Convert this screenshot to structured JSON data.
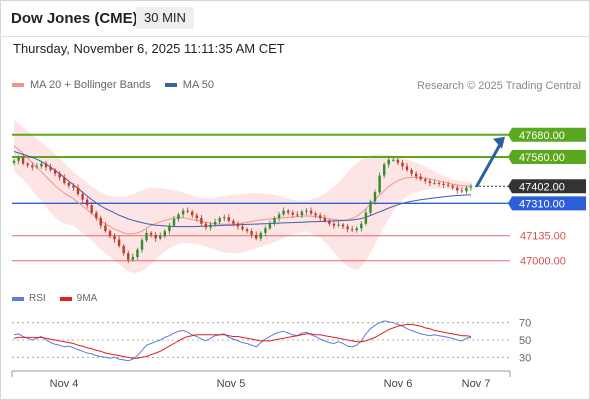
{
  "header": {
    "title": "Dow Jones (CME)",
    "timeframe": "30 MIN",
    "date": "Thursday, November 6, 2025 11:11:35 AM CET",
    "credit": "Research © 2025 Trading Central"
  },
  "legend": {
    "items": [
      {
        "label": "MA 20 + Bollinger Bands",
        "color": "#f0938f"
      },
      {
        "label": "MA 50",
        "color": "#3b5fa8"
      }
    ]
  },
  "rsi_legend": {
    "items": [
      {
        "label": "RSI",
        "color": "#5b7fd6"
      },
      {
        "label": "9MA",
        "color": "#e02020"
      }
    ]
  },
  "colors": {
    "up_candle": "#2e8b2e",
    "down_candle": "#c0392b",
    "resistance": "#5aa81e",
    "pivot": "#2a5fd8",
    "support": "#e26a6a",
    "current": "#333333",
    "bollinger_fill": "#fde0e0",
    "ma20": "#f0938f",
    "ma50": "#3b5fa8",
    "arrow": "#2a5fa8"
  },
  "chart_data": [
    {
      "type": "candlestick",
      "title": "",
      "y_range": [
        46885,
        47760
      ],
      "x_labels": [
        "Nov 4",
        "Nov 5",
        "Nov 6",
        "Nov 7"
      ],
      "levels": [
        {
          "value": 47680.0,
          "label": "47680.00",
          "kind": "resistance"
        },
        {
          "value": 47560.0,
          "label": "47560.00",
          "kind": "resistance"
        },
        {
          "value": 47402.0,
          "label": "47402.00",
          "kind": "current"
        },
        {
          "value": 47310.0,
          "label": "47310.00",
          "kind": "pivot"
        },
        {
          "value": 47135.0,
          "label": "47135.00",
          "kind": "support"
        },
        {
          "value": 47000.0,
          "label": "47000.00",
          "kind": "support"
        }
      ],
      "forecast_arrow": {
        "from": 47405,
        "to": 47680
      },
      "close": [
        47540,
        47555,
        47525,
        47515,
        47505,
        47510,
        47525,
        47505,
        47490,
        47470,
        47450,
        47420,
        47405,
        47395,
        47360,
        47330,
        47300,
        47260,
        47230,
        47190,
        47160,
        47135,
        47115,
        47080,
        47040,
        47005,
        47020,
        47060,
        47110,
        47150,
        47140,
        47120,
        47135,
        47160,
        47190,
        47225,
        47250,
        47270,
        47265,
        47245,
        47230,
        47200,
        47180,
        47195,
        47210,
        47230,
        47235,
        47215,
        47200,
        47185,
        47170,
        47160,
        47140,
        47120,
        47150,
        47175,
        47200,
        47230,
        47250,
        47270,
        47260,
        47250,
        47245,
        47265,
        47270,
        47255,
        47245,
        47230,
        47215,
        47200,
        47190,
        47195,
        47185,
        47170,
        47165,
        47175,
        47200,
        47260,
        47320,
        47370,
        47460,
        47520,
        47545,
        47545,
        47530,
        47510,
        47490,
        47470,
        47455,
        47440,
        47430,
        47420,
        47420,
        47415,
        47410,
        47405,
        47395,
        47380,
        47375,
        47395,
        47402
      ],
      "ma20": [
        47620,
        47600,
        47580,
        47555,
        47530,
        47505,
        47480,
        47455,
        47430,
        47405,
        47385,
        47365,
        47350,
        47335,
        47315,
        47295,
        47275,
        47255,
        47235,
        47215,
        47200,
        47185,
        47170,
        47160,
        47150,
        47145,
        47145,
        47150,
        47160,
        47175,
        47190,
        47200,
        47210,
        47218,
        47225,
        47230,
        47232,
        47232,
        47228,
        47222,
        47218,
        47212,
        47207,
        47203,
        47200,
        47198,
        47197,
        47197,
        47198,
        47200,
        47203,
        47207,
        47212,
        47217,
        47220,
        47223,
        47226,
        47228,
        47230,
        47232,
        47234,
        47236,
        47238,
        47240,
        47242,
        47240,
        47238,
        47235,
        47231,
        47227,
        47223,
        47220,
        47218,
        47220,
        47228,
        47240,
        47258,
        47280,
        47305,
        47330,
        47355,
        47378,
        47400,
        47418,
        47432,
        47442,
        47448,
        47450,
        47450,
        47448,
        47445,
        47441,
        47436,
        47430,
        47424,
        47418,
        47413,
        47409,
        47406,
        47404,
        47403
      ],
      "bb_upper": [
        47760,
        47740,
        47720,
        47700,
        47680,
        47660,
        47640,
        47620,
        47600,
        47575,
        47555,
        47530,
        47505,
        47480,
        47460,
        47440,
        47420,
        47400,
        47385,
        47370,
        47358,
        47350,
        47345,
        47345,
        47345,
        47350,
        47360,
        47370,
        47380,
        47390,
        47395,
        47395,
        47392,
        47388,
        47384,
        47380,
        47375,
        47368,
        47360,
        47352,
        47345,
        47340,
        47338,
        47338,
        47340,
        47344,
        47348,
        47352,
        47356,
        47360,
        47362,
        47364,
        47365,
        47365,
        47364,
        47362,
        47360,
        47356,
        47350,
        47343,
        47336,
        47330,
        47326,
        47324,
        47325,
        47330,
        47338,
        47348,
        47362,
        47380,
        47400,
        47422,
        47448,
        47475,
        47505,
        47530,
        47548,
        47560,
        47568,
        47572,
        47574,
        47574,
        47572,
        47568,
        47563,
        47556,
        47548,
        47540,
        47530,
        47520,
        47508,
        47496,
        47482,
        47470,
        47458,
        47448,
        47440,
        47434,
        47430,
        47428,
        47427
      ],
      "bb_lower": [
        47480,
        47460,
        47440,
        47410,
        47380,
        47350,
        47320,
        47290,
        47260,
        47235,
        47215,
        47200,
        47195,
        47190,
        47170,
        47150,
        47130,
        47110,
        47085,
        47060,
        47042,
        47020,
        47000,
        46980,
        46960,
        46945,
        46935,
        46935,
        46945,
        46960,
        46985,
        47005,
        47028,
        47048,
        47066,
        47080,
        47090,
        47096,
        47096,
        47092,
        47091,
        47084,
        47076,
        47068,
        47060,
        47052,
        47046,
        47042,
        47040,
        47040,
        47044,
        47050,
        47059,
        47069,
        47076,
        47084,
        47092,
        47100,
        47110,
        47121,
        47132,
        47142,
        47150,
        47156,
        47159,
        47150,
        47138,
        47122,
        47100,
        47074,
        47046,
        47018,
        46992,
        46970,
        46955,
        46950,
        46968,
        47000,
        47042,
        47088,
        47136,
        47182,
        47228,
        47268,
        47301,
        47328,
        47348,
        47360,
        47370,
        47376,
        47382,
        47386,
        47390,
        47390,
        47390,
        47388,
        47386,
        47384,
        47382,
        47380,
        47379
      ],
      "ma50": [
        47590,
        47582,
        47574,
        47566,
        47558,
        47548,
        47536,
        47522,
        47506,
        47488,
        47470,
        47450,
        47430,
        47410,
        47390,
        47370,
        47350,
        47330,
        47312,
        47296,
        47282,
        47270,
        47258,
        47246,
        47236,
        47226,
        47218,
        47212,
        47206,
        47200,
        47196,
        47192,
        47190,
        47188,
        47186,
        47185,
        47184,
        47184,
        47184,
        47184,
        47185,
        47186,
        47187,
        47188,
        47189,
        47190,
        47191,
        47192,
        47193,
        47194,
        47195,
        47196,
        47197,
        47198,
        47199,
        47200,
        47201,
        47202,
        47203,
        47204,
        47205,
        47206,
        47207,
        47208,
        47209,
        47210,
        47211,
        47212,
        47213,
        47214,
        47215,
        47216,
        47217,
        47218,
        47220,
        47223,
        47228,
        47235,
        47244,
        47254,
        47264,
        47274,
        47284,
        47294,
        47302,
        47310,
        47316,
        47321,
        47325,
        47329,
        47333,
        47336,
        47339,
        47342,
        47345,
        47348,
        47350,
        47352,
        47354,
        47355,
        47356
      ]
    },
    {
      "type": "line",
      "title": "RSI",
      "series": [
        {
          "name": "RSI",
          "values": [
            56,
            57,
            54,
            52,
            50,
            52,
            54,
            50,
            47,
            45,
            44,
            42,
            43,
            41,
            39,
            37,
            35,
            34,
            32,
            31,
            30,
            29,
            30,
            28,
            27,
            26,
            28,
            32,
            38,
            44,
            46,
            48,
            50,
            53,
            55,
            58,
            60,
            61,
            59,
            56,
            54,
            51,
            49,
            52,
            55,
            56,
            57,
            53,
            51,
            49,
            47,
            46,
            44,
            42,
            47,
            51,
            54,
            57,
            59,
            60,
            58,
            56,
            55,
            58,
            59,
            56,
            54,
            51,
            49,
            47,
            46,
            48,
            46,
            43,
            42,
            44,
            49,
            57,
            63,
            67,
            70,
            72,
            71,
            70,
            68,
            66,
            63,
            61,
            59,
            57,
            56,
            55,
            56,
            55,
            54,
            53,
            52,
            50,
            49,
            52,
            53
          ]
        },
        {
          "name": "9MA",
          "values": [
            52,
            53,
            53,
            53,
            53,
            53,
            53,
            52,
            51,
            50,
            49,
            48,
            47,
            46,
            44,
            43,
            41,
            40,
            38,
            37,
            35,
            34,
            33,
            32,
            31,
            30,
            29,
            29,
            30,
            31,
            33,
            35,
            37,
            40,
            43,
            46,
            49,
            52,
            54,
            55,
            56,
            56,
            56,
            56,
            56,
            56,
            56,
            55,
            54,
            54,
            53,
            52,
            51,
            50,
            49,
            49,
            49,
            50,
            51,
            52,
            53,
            54,
            55,
            56,
            57,
            57,
            56,
            56,
            55,
            54,
            53,
            52,
            51,
            50,
            49,
            48,
            48,
            49,
            51,
            53,
            56,
            59,
            62,
            64,
            66,
            67,
            68,
            68,
            67,
            66,
            64,
            63,
            61,
            60,
            59,
            58,
            57,
            56,
            55,
            55,
            54
          ]
        }
      ],
      "ylim": [
        20,
        80
      ],
      "y_ticks": [
        "70",
        "50",
        "30"
      ],
      "x_labels": [
        "Nov 4",
        "Nov 5",
        "Nov 6",
        "Nov 7"
      ]
    }
  ]
}
